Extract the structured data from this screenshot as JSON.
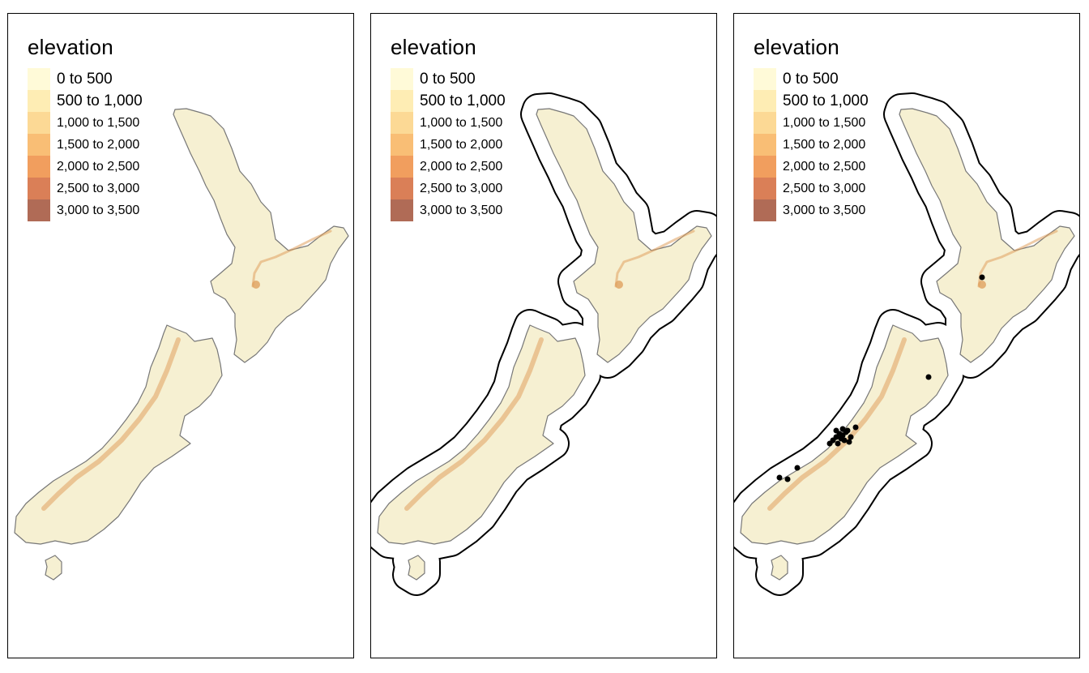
{
  "panels": [
    {
      "id": "elevation-map",
      "show_buffer": false,
      "show_points": false
    },
    {
      "id": "elevation-buffer-map",
      "show_buffer": true,
      "show_points": false
    },
    {
      "id": "elevation-buffer-points-map",
      "show_buffer": true,
      "show_points": true
    }
  ],
  "legend": {
    "title": "elevation",
    "items": [
      {
        "label": "0 to 500",
        "color": "#FFFAD8"
      },
      {
        "label": "500 to 1,000",
        "color": "#FEEDB4"
      },
      {
        "label": "1,000 to 1,500",
        "color": "#FCD995"
      },
      {
        "label": "1,500 to 2,000",
        "color": "#F9BE75"
      },
      {
        "label": "2,000 to 2,500",
        "color": "#F19E5E"
      },
      {
        "label": "2,500 to 3,000",
        "color": "#DA7F57"
      },
      {
        "label": "3,000 to 3,500",
        "color": "#B06B56"
      }
    ]
  },
  "colors": {
    "land": "#F6F0D2",
    "coast": "#777777",
    "ridge": "#E0A15F",
    "buffer": "#000000",
    "points": "#000000"
  }
}
